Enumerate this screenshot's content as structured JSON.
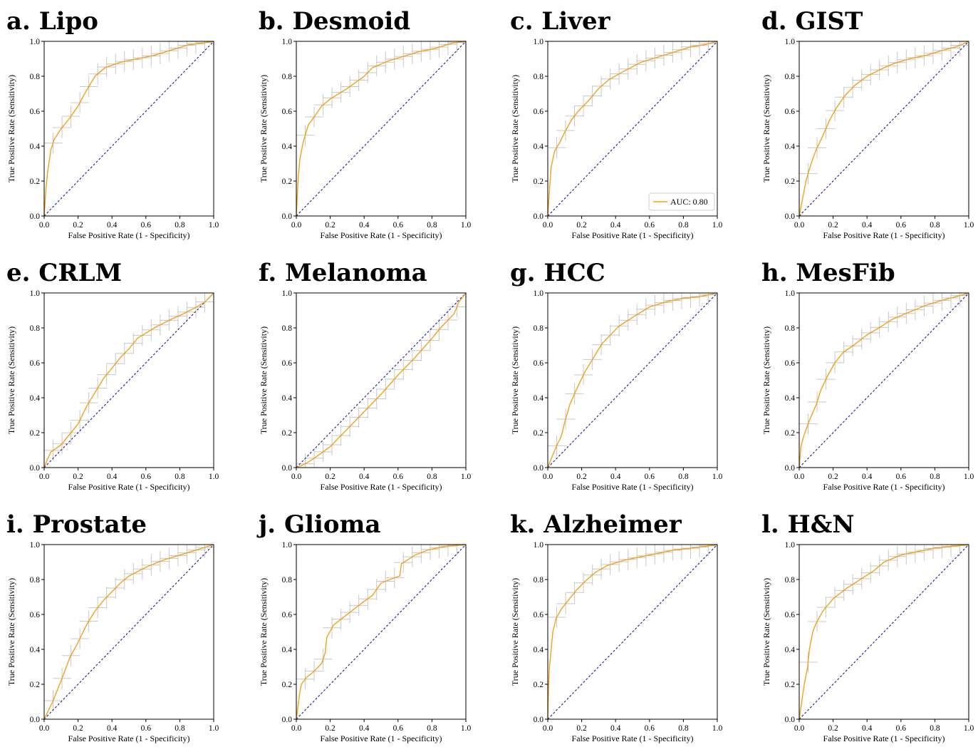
{
  "figure": {
    "xlabel": "False Positive Rate (1 - Specificity)",
    "ylabel": "True Positive Rate (Sensitivity)",
    "ticks": [
      "0.0",
      "0.2",
      "0.4",
      "0.6",
      "0.8",
      "1.0"
    ],
    "colors": {
      "roc": "#f5a01a",
      "chance": "#1a1a9c",
      "error_bars": "#c8c8c8",
      "axes": "#000000"
    }
  },
  "chart_data": [
    {
      "type": "line",
      "title": "a. Lipo",
      "xlim": [
        0,
        1
      ],
      "ylim": [
        0,
        1
      ],
      "x": [
        0,
        0.01,
        0.02,
        0.04,
        0.06,
        0.1,
        0.15,
        0.2,
        0.25,
        0.3,
        0.36,
        0.45,
        0.55,
        0.65,
        0.75,
        0.85,
        0.93,
        1.0
      ],
      "y": [
        0,
        0.15,
        0.25,
        0.38,
        0.44,
        0.5,
        0.56,
        0.63,
        0.72,
        0.8,
        0.85,
        0.88,
        0.9,
        0.92,
        0.95,
        0.98,
        0.99,
        1.0
      ]
    },
    {
      "type": "line",
      "title": "b. Desmoid",
      "xlim": [
        0,
        1
      ],
      "ylim": [
        0,
        1
      ],
      "x": [
        0,
        0.01,
        0.02,
        0.04,
        0.07,
        0.1,
        0.15,
        0.2,
        0.3,
        0.4,
        0.45,
        0.55,
        0.62,
        0.72,
        0.82,
        0.92,
        1.0
      ],
      "y": [
        0,
        0.2,
        0.32,
        0.42,
        0.52,
        0.56,
        0.63,
        0.67,
        0.73,
        0.8,
        0.85,
        0.89,
        0.91,
        0.94,
        0.96,
        0.99,
        1.0
      ]
    },
    {
      "type": "line",
      "title": "c. Liver",
      "xlim": [
        0,
        1
      ],
      "ylim": [
        0,
        1
      ],
      "x": [
        0,
        0.01,
        0.02,
        0.04,
        0.07,
        0.1,
        0.14,
        0.18,
        0.24,
        0.3,
        0.36,
        0.45,
        0.55,
        0.65,
        0.75,
        0.85,
        0.92,
        1.0
      ],
      "y": [
        0,
        0.15,
        0.28,
        0.37,
        0.42,
        0.48,
        0.55,
        0.6,
        0.66,
        0.73,
        0.78,
        0.83,
        0.88,
        0.91,
        0.94,
        0.97,
        0.98,
        1.0
      ],
      "legend": {
        "label": "AUC: 0.80",
        "position": "lower right"
      }
    },
    {
      "type": "line",
      "title": "d. GIST",
      "xlim": [
        0,
        1
      ],
      "ylim": [
        0,
        1
      ],
      "x": [
        0,
        0.02,
        0.04,
        0.07,
        0.1,
        0.14,
        0.18,
        0.22,
        0.27,
        0.33,
        0.4,
        0.48,
        0.55,
        0.65,
        0.75,
        0.85,
        0.93,
        1.0
      ],
      "y": [
        0,
        0.1,
        0.2,
        0.3,
        0.38,
        0.46,
        0.55,
        0.62,
        0.69,
        0.75,
        0.8,
        0.84,
        0.87,
        0.9,
        0.92,
        0.95,
        0.97,
        1.0
      ]
    },
    {
      "type": "line",
      "title": "e. CRLM",
      "xlim": [
        0,
        1
      ],
      "ylim": [
        0,
        1
      ],
      "x": [
        0,
        0.02,
        0.04,
        0.1,
        0.15,
        0.2,
        0.25,
        0.3,
        0.35,
        0.4,
        0.45,
        0.5,
        0.55,
        0.65,
        0.75,
        0.82,
        0.9,
        0.95,
        1.0
      ],
      "y": [
        0,
        0.05,
        0.09,
        0.13,
        0.19,
        0.25,
        0.35,
        0.43,
        0.51,
        0.57,
        0.63,
        0.68,
        0.74,
        0.8,
        0.85,
        0.88,
        0.92,
        0.95,
        1.0
      ]
    },
    {
      "type": "line",
      "title": "f. Melanoma",
      "xlim": [
        0,
        1
      ],
      "ylim": [
        0,
        1
      ],
      "x": [
        0,
        0.05,
        0.1,
        0.2,
        0.3,
        0.4,
        0.5,
        0.6,
        0.7,
        0.8,
        0.85,
        0.9,
        0.93,
        0.96,
        1.0
      ],
      "y": [
        0,
        0.02,
        0.05,
        0.12,
        0.22,
        0.32,
        0.42,
        0.53,
        0.63,
        0.74,
        0.8,
        0.85,
        0.88,
        0.95,
        1.0
      ]
    },
    {
      "type": "line",
      "title": "g. HCC",
      "xlim": [
        0,
        1
      ],
      "ylim": [
        0,
        1
      ],
      "x": [
        0,
        0.02,
        0.05,
        0.08,
        0.1,
        0.13,
        0.17,
        0.22,
        0.27,
        0.32,
        0.37,
        0.42,
        0.5,
        0.6,
        0.7,
        0.8,
        0.9,
        1.0
      ],
      "y": [
        0,
        0.05,
        0.12,
        0.18,
        0.26,
        0.36,
        0.45,
        0.55,
        0.63,
        0.71,
        0.76,
        0.81,
        0.86,
        0.92,
        0.95,
        0.97,
        0.98,
        1.0
      ]
    },
    {
      "type": "line",
      "title": "h. MesFib",
      "xlim": [
        0,
        1
      ],
      "ylim": [
        0,
        1
      ],
      "x": [
        0,
        0.01,
        0.03,
        0.06,
        0.1,
        0.13,
        0.17,
        0.21,
        0.26,
        0.32,
        0.4,
        0.47,
        0.55,
        0.65,
        0.75,
        0.85,
        0.93,
        1.0
      ],
      "y": [
        0,
        0.12,
        0.19,
        0.27,
        0.36,
        0.45,
        0.53,
        0.6,
        0.66,
        0.7,
        0.76,
        0.8,
        0.85,
        0.89,
        0.93,
        0.96,
        0.98,
        1.0
      ]
    },
    {
      "type": "line",
      "title": "i. Prostate",
      "xlim": [
        0,
        1
      ],
      "ylim": [
        0,
        1
      ],
      "x": [
        0,
        0.05,
        0.1,
        0.15,
        0.2,
        0.25,
        0.3,
        0.35,
        0.4,
        0.45,
        0.5,
        0.6,
        0.7,
        0.8,
        0.9,
        1.0
      ],
      "y": [
        0,
        0.1,
        0.22,
        0.35,
        0.44,
        0.54,
        0.62,
        0.68,
        0.73,
        0.78,
        0.82,
        0.87,
        0.91,
        0.94,
        0.97,
        1.0
      ]
    },
    {
      "type": "line",
      "title": "j. Glioma",
      "xlim": [
        0,
        1
      ],
      "ylim": [
        0,
        1
      ],
      "x": [
        0,
        0.02,
        0.03,
        0.06,
        0.1,
        0.15,
        0.17,
        0.18,
        0.22,
        0.3,
        0.38,
        0.45,
        0.5,
        0.58,
        0.61,
        0.62,
        0.7,
        0.78,
        0.88,
        1.0
      ],
      "y": [
        0,
        0.15,
        0.2,
        0.24,
        0.27,
        0.32,
        0.38,
        0.47,
        0.54,
        0.6,
        0.66,
        0.71,
        0.78,
        0.81,
        0.82,
        0.89,
        0.94,
        0.97,
        0.99,
        1.0
      ]
    },
    {
      "type": "line",
      "title": "k. Alzheimer",
      "xlim": [
        0,
        1
      ],
      "ylim": [
        0,
        1
      ],
      "x": [
        0,
        0.005,
        0.01,
        0.02,
        0.03,
        0.05,
        0.08,
        0.12,
        0.17,
        0.22,
        0.28,
        0.35,
        0.45,
        0.55,
        0.65,
        0.75,
        0.85,
        0.93,
        1.0
      ],
      "y": [
        0,
        0.2,
        0.3,
        0.4,
        0.5,
        0.58,
        0.63,
        0.68,
        0.74,
        0.79,
        0.84,
        0.88,
        0.91,
        0.93,
        0.95,
        0.97,
        0.98,
        0.99,
        1.0
      ]
    },
    {
      "type": "line",
      "title": "l. H&N",
      "xlim": [
        0,
        1
      ],
      "ylim": [
        0,
        1
      ],
      "x": [
        0,
        0.03,
        0.05,
        0.06,
        0.08,
        0.1,
        0.14,
        0.2,
        0.28,
        0.36,
        0.44,
        0.5,
        0.6,
        0.7,
        0.8,
        0.9,
        1.0
      ],
      "y": [
        0,
        0.2,
        0.3,
        0.4,
        0.5,
        0.55,
        0.62,
        0.69,
        0.75,
        0.8,
        0.85,
        0.9,
        0.94,
        0.96,
        0.98,
        0.99,
        1.0
      ]
    }
  ]
}
